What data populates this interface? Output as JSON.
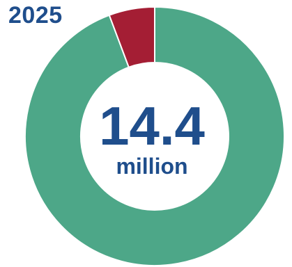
{
  "chart_data": {
    "type": "pie",
    "title": "2025",
    "center_value": "14.4",
    "center_unit": "million",
    "slices": [
      {
        "value": 94.3,
        "color": "#4da788"
      },
      {
        "value": 5.7,
        "color": "#a41e34"
      }
    ],
    "legend": "none"
  },
  "colors": {
    "title": "#1f4e8c",
    "center_text": "#1f4e8c",
    "background": "#ffffff"
  }
}
